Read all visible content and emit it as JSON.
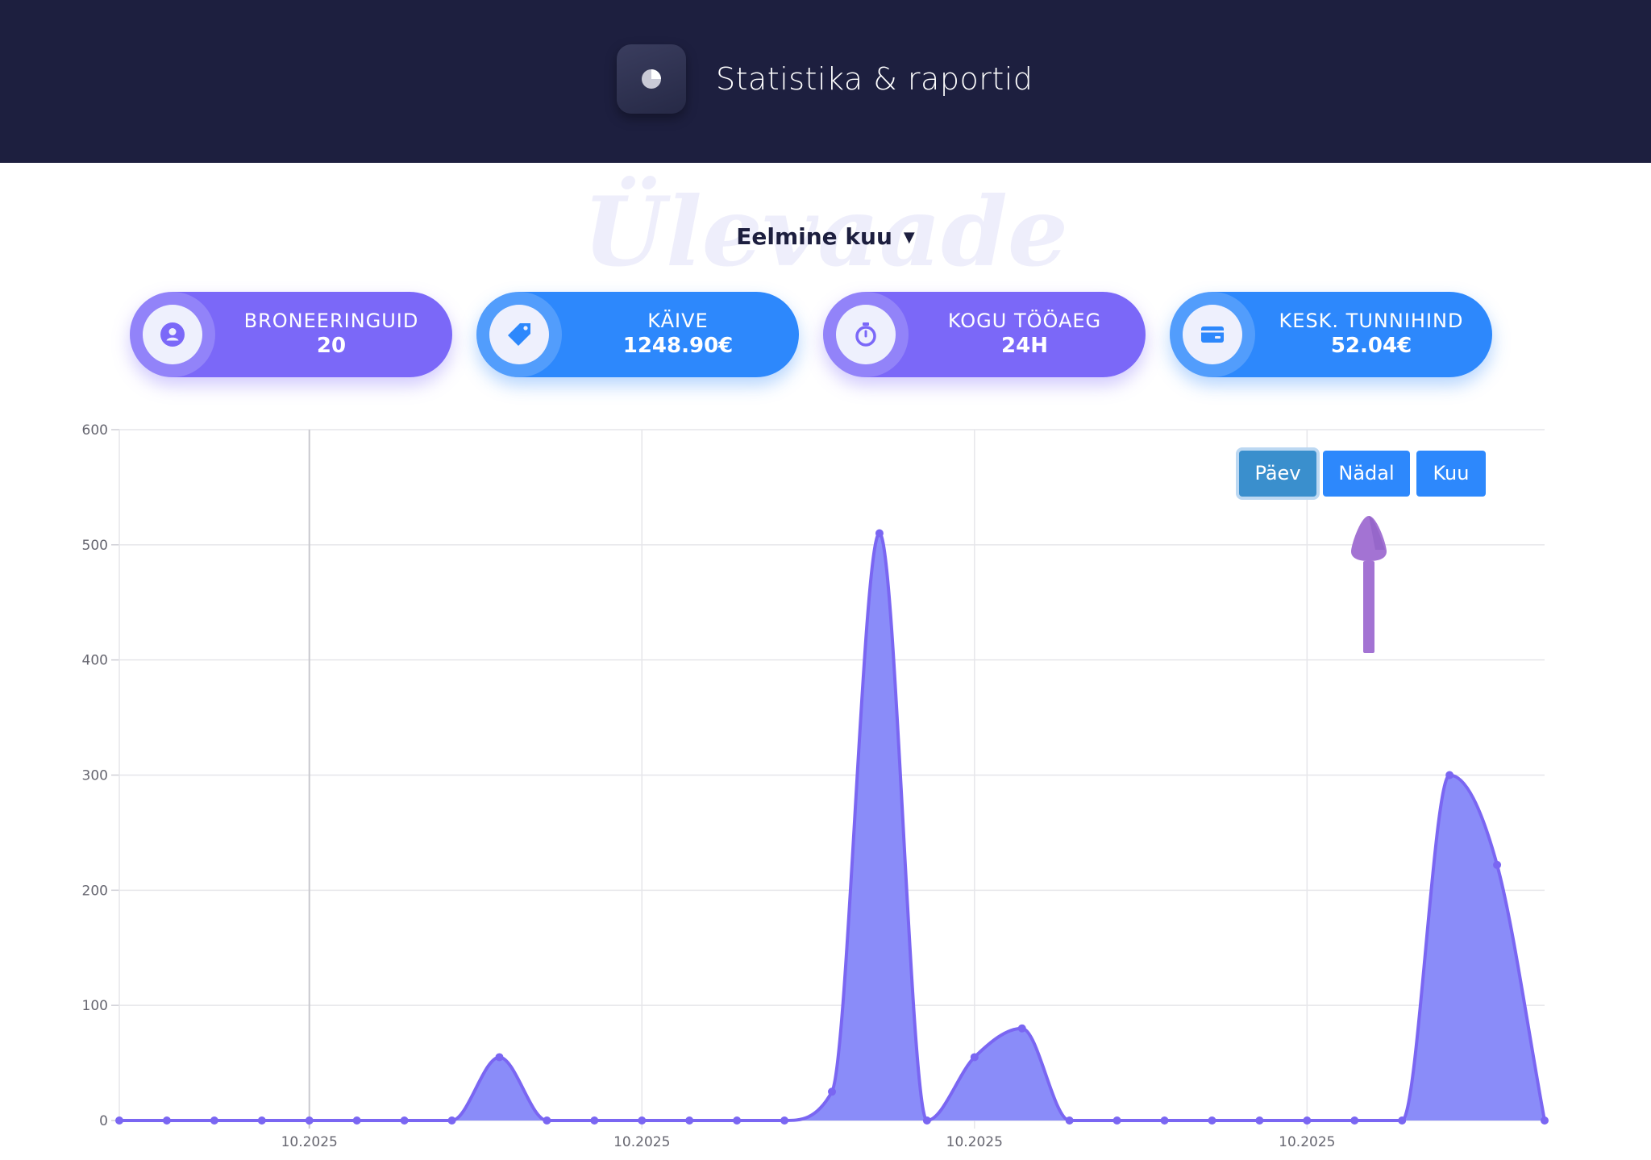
{
  "header": {
    "title": "Statistika & raportid",
    "icon": "pie-chart-icon"
  },
  "section": {
    "watermark": "Ülevaade",
    "period_label": "Eelmine kuu",
    "period_caret": "▼"
  },
  "stats": [
    {
      "label": "BRONEERINGUID",
      "value": "20",
      "icon": "user-circle-icon",
      "color": "#7b68f8"
    },
    {
      "label": "KÄIVE",
      "value": "1248.90€",
      "icon": "price-tag-icon",
      "color": "#2d88fc"
    },
    {
      "label": "KOGU TÖÖAEG",
      "value": "24H",
      "icon": "stopwatch-icon",
      "color": "#7b68f8"
    },
    {
      "label": "KESK. TUNNIHIND",
      "value": "52.04€",
      "icon": "credit-card-icon",
      "color": "#2d88fc"
    }
  ],
  "range_toggle": {
    "options": [
      "Päev",
      "Nädal",
      "Kuu"
    ],
    "selected": "Päev"
  },
  "chart_data": {
    "type": "area",
    "title": "",
    "xlabel": "",
    "ylabel": "",
    "ylim": [
      0,
      600
    ],
    "yticks": [
      0,
      100,
      200,
      300,
      400,
      500,
      600
    ],
    "x_tick_labels": [
      "10.2025",
      "10.2025",
      "10.2025",
      "10.2025"
    ],
    "x_tick_indices": [
      4,
      11,
      18,
      25
    ],
    "grid": true,
    "legend": "none",
    "series": [
      {
        "values": [
          0,
          0,
          0,
          0,
          0,
          0,
          0,
          0,
          55,
          0,
          0,
          0,
          0,
          0,
          0,
          25,
          510,
          0,
          55,
          80,
          0,
          0,
          0,
          0,
          0,
          0,
          0,
          0,
          300,
          222,
          0
        ],
        "line_color": "#7a66f2",
        "fill_color": "#8a8cf9"
      }
    ]
  }
}
